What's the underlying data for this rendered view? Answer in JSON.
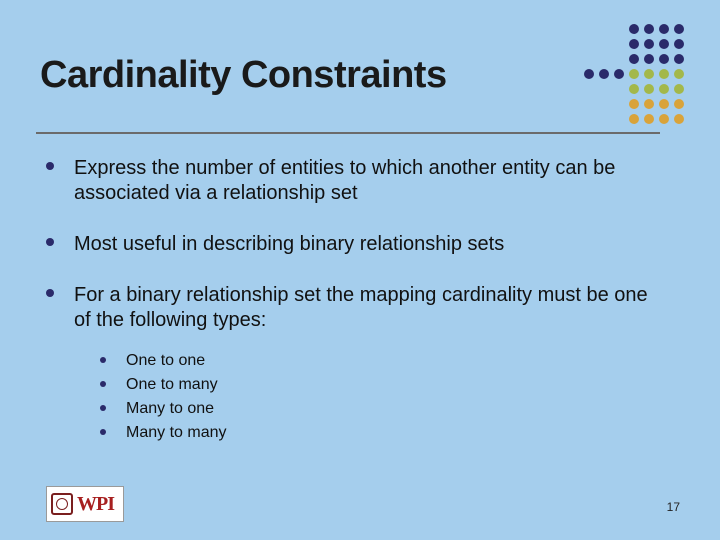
{
  "slide": {
    "background_color": "#a5ceed",
    "title": "Cardinality Constraints",
    "title_fontsize": 38,
    "title_color": "#1a1a1a",
    "underline_color": "#6b6b6b",
    "bullets": [
      {
        "text": "Express the number of entities to which another entity can be associated via a relationship set"
      },
      {
        "text": "Most useful in describing binary relationship sets"
      },
      {
        "text": "For a binary relationship set the mapping cardinality must be one of the following types:",
        "children": [
          {
            "text": "One to one"
          },
          {
            "text": "One to many"
          },
          {
            "text": "Many to one"
          },
          {
            "text": "Many to many"
          }
        ]
      }
    ],
    "bullet_color": "#2a2a6a",
    "body_fontsize_lvl1": 20,
    "body_fontsize_lvl2": 16
  },
  "decoration": {
    "dot_grid": {
      "cols": 7,
      "rows": 7,
      "cell": 12,
      "gap": 3,
      "dot_diameter": 10,
      "color_row1": "#2a2a6a",
      "color_row2": "#a3b84a",
      "color_row3": "#d9a33a",
      "pattern": [
        [
          0,
          0,
          0,
          1,
          1,
          1,
          1
        ],
        [
          0,
          0,
          0,
          1,
          1,
          1,
          1
        ],
        [
          0,
          0,
          0,
          1,
          1,
          1,
          1
        ],
        [
          1,
          1,
          1,
          2,
          2,
          2,
          2
        ],
        [
          0,
          0,
          0,
          2,
          2,
          2,
          2
        ],
        [
          0,
          0,
          0,
          3,
          3,
          3,
          3
        ],
        [
          0,
          0,
          0,
          3,
          3,
          3,
          3
        ]
      ]
    }
  },
  "footer": {
    "logo_text": "WPI",
    "logo_text_color": "#a71f1f",
    "logo_bg": "#ffffff",
    "page_number": "17"
  }
}
